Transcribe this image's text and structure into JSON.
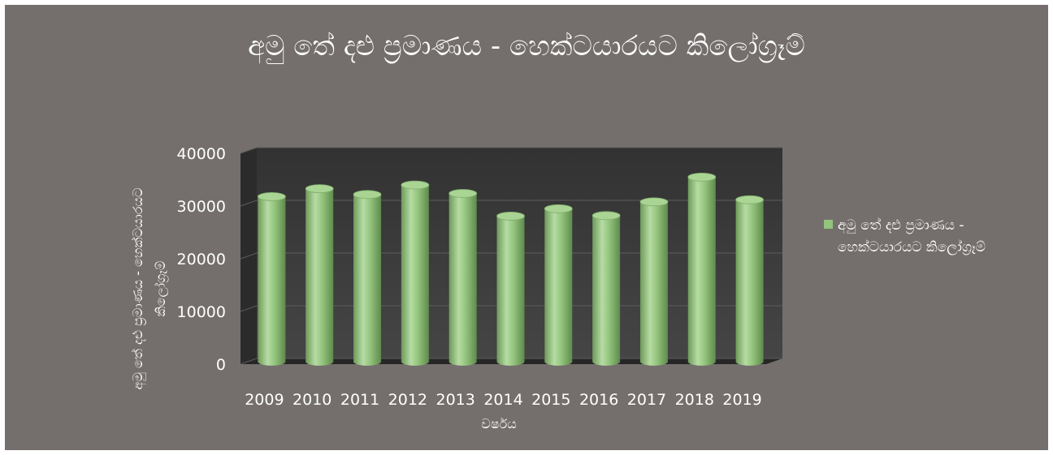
{
  "chart_data": {
    "type": "bar",
    "title": "අමු තේ දළු ප්‍රමාණය - හෙක්ටයාරයට කිලෝග්‍රෑම්",
    "xlabel": "වර්ෂය",
    "ylabel": "අමු තේ දළු ප්‍රමාණය - හෙක්ටයාරයට කිලෝග්‍රෑම්",
    "categories": [
      "2009",
      "2010",
      "2011",
      "2012",
      "2013",
      "2014",
      "2015",
      "2016",
      "2017",
      "2018",
      "2019"
    ],
    "series": [
      {
        "name": "අමු තේ දළු ප්‍රමාණය - හෙක්ටයාරයට කිලෝග්‍රෑම්",
        "values": [
          31300,
          32800,
          31700,
          33500,
          31900,
          27600,
          29000,
          27700,
          30300,
          35000,
          30700
        ]
      }
    ],
    "ylim": [
      0,
      40000
    ],
    "yticks": [
      "0",
      "10000",
      "20000",
      "30000",
      "40000"
    ],
    "grid": true,
    "legend_position": "right",
    "colors": {
      "background": "#746f6d",
      "bar": "#92c47d",
      "wall": "#3b3b3b",
      "text": "#ffffff"
    }
  },
  "legend": {
    "line1": "අමු තේ දළු ප්‍රමාණය -",
    "line2": "හෙක්ටයාරයට කිලෝග්‍රෑම්"
  },
  "yaxis_title": {
    "line1": "අමු තේ දළු ප්‍රමාණය - හෙක්ටයාරයට",
    "line2": "කිලෝග්‍රෑම්"
  }
}
